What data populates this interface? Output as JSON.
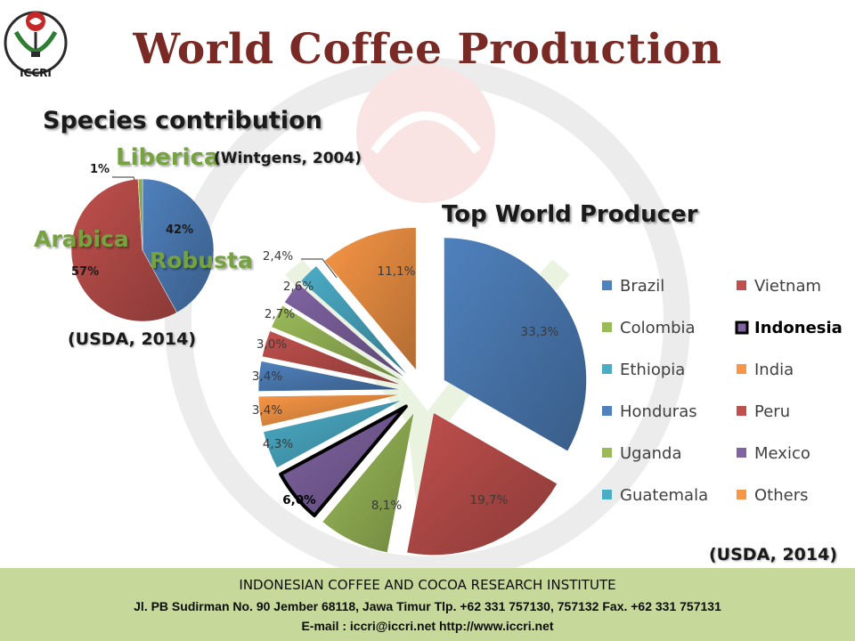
{
  "header": {
    "title": "World Coffee Production",
    "logo_text": "ICCRI"
  },
  "species": {
    "heading": "Species contribution",
    "label_liberica": "Liberica",
    "label_arabica": "Arabica",
    "label_robusta": "Robusta",
    "citation_wintgens": "(Wintgens, 2004)",
    "citation_usda": "(USDA, 2014)"
  },
  "producers": {
    "heading": "Top World Producer",
    "citation": "(USDA, 2014)"
  },
  "footer": {
    "institute": "INDONESIAN COFFEE AND COCOA RESEARCH INSTITUTE",
    "address": "Jl. PB Sudirman No. 90 Jember 68118, Jawa Timur Tlp. +62 331 757130, 757132 Fax. +62 331 757131",
    "contact": "E-mail : iccri@iccri.net  http://www.iccri.net"
  },
  "colors": {
    "title": "#7a2a24",
    "species_label": "#76a33f",
    "footer_bg": "#c6d99a"
  },
  "chart_data": [
    {
      "type": "pie",
      "title": "Species contribution",
      "categories": [
        "Robusta",
        "Arabica",
        "Liberica"
      ],
      "values": [
        42,
        57,
        1
      ],
      "labels": [
        "42%",
        "57%",
        "1%"
      ],
      "colors": [
        "#4f81bd",
        "#c0504d",
        "#9bbb59"
      ]
    },
    {
      "type": "pie",
      "title": "Top World Producer",
      "categories": [
        "Brazil",
        "Vietnam",
        "Colombia",
        "Indonesia",
        "Ethiopia",
        "India",
        "Honduras",
        "Peru",
        "Uganda",
        "Mexico",
        "Guatemala",
        "Others"
      ],
      "values": [
        33.3,
        19.7,
        8.1,
        6.0,
        4.3,
        3.4,
        3.4,
        3.0,
        2.7,
        2.6,
        2.4,
        11.1
      ],
      "labels": [
        "33,3%",
        "19,7%",
        "8,1%",
        "6,0%",
        "4,3%",
        "3,4%",
        "3,4%",
        "3,0%",
        "2,7%",
        "2,6%",
        "2,4%",
        "11,1%"
      ],
      "colors": [
        "#4f81bd",
        "#c0504d",
        "#9bbb59",
        "#8064a2",
        "#4bacc6",
        "#f79646",
        "#4f81bd",
        "#c0504d",
        "#9bbb59",
        "#8064a2",
        "#4bacc6",
        "#f79646"
      ],
      "highlight": "Indonesia",
      "legend_position": "right"
    }
  ]
}
